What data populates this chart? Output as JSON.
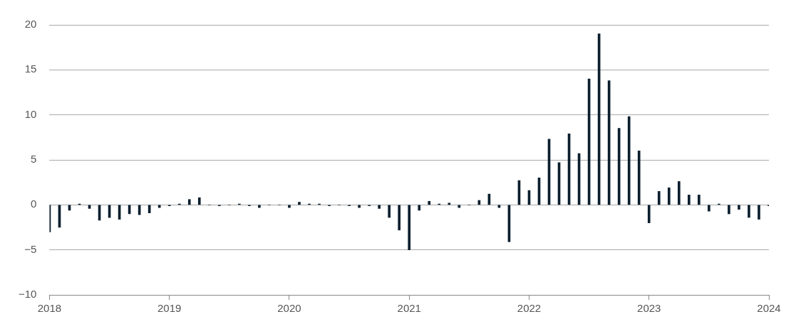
{
  "chart_data": {
    "type": "bar",
    "x": [
      "2018-01",
      "2018-02",
      "2018-03",
      "2018-04",
      "2018-05",
      "2018-06",
      "2018-07",
      "2018-08",
      "2018-09",
      "2018-10",
      "2018-11",
      "2018-12",
      "2019-01",
      "2019-02",
      "2019-03",
      "2019-04",
      "2019-05",
      "2019-06",
      "2019-07",
      "2019-08",
      "2019-09",
      "2019-10",
      "2019-11",
      "2019-12",
      "2020-01",
      "2020-02",
      "2020-03",
      "2020-04",
      "2020-05",
      "2020-06",
      "2020-07",
      "2020-08",
      "2020-09",
      "2020-10",
      "2020-11",
      "2020-12",
      "2021-01",
      "2021-02",
      "2021-03",
      "2021-04",
      "2021-05",
      "2021-06",
      "2021-07",
      "2021-08",
      "2021-09",
      "2021-10",
      "2021-11",
      "2021-12",
      "2022-01",
      "2022-02",
      "2022-03",
      "2022-04",
      "2022-05",
      "2022-06",
      "2022-07",
      "2022-08",
      "2022-09",
      "2022-10",
      "2022-11",
      "2022-12",
      "2023-01",
      "2023-02",
      "2023-03",
      "2023-04",
      "2023-05",
      "2023-06",
      "2023-07",
      "2023-08",
      "2023-09",
      "2023-10",
      "2023-11",
      "2023-12",
      "2024-01"
    ],
    "values": [
      -3.0,
      -2.5,
      -0.6,
      0.1,
      -0.4,
      -1.7,
      -1.4,
      -1.6,
      -1.0,
      -1.1,
      -0.9,
      -0.3,
      -0.1,
      0.1,
      0.6,
      0.8,
      0,
      -0.1,
      0,
      0.1,
      -0.1,
      -0.3,
      0,
      0,
      -0.3,
      0.3,
      0.1,
      0.1,
      -0.1,
      0,
      -0.1,
      -0.3,
      -0.1,
      -0.4,
      -1.4,
      -2.8,
      -5.0,
      -0.6,
      0.4,
      0.1,
      0.2,
      -0.3,
      0,
      0.5,
      1.2,
      -0.3,
      -4.1,
      2.7,
      1.6,
      3.0,
      7.3,
      4.7,
      7.9,
      5.7,
      14.0,
      19.0,
      13.8,
      8.5,
      9.8,
      6.0,
      -2.0,
      1.5,
      1.9,
      2.6,
      1.1,
      1.1,
      -0.7,
      0.1,
      -1.0,
      -0.5,
      -1.4,
      -1.6,
      -0.1
    ],
    "color": "#0b1f2e",
    "xlim": [
      "2018",
      "2024"
    ],
    "xticks": [
      "2018",
      "2019",
      "2020",
      "2021",
      "2022",
      "2023",
      "2024"
    ],
    "ylim": [
      -10,
      20
    ],
    "yticks": [
      {
        "value": -10,
        "label": "−10"
      },
      {
        "value": -5,
        "label": "−5"
      },
      0,
      5,
      10,
      15,
      20
    ],
    "grid": "y"
  }
}
